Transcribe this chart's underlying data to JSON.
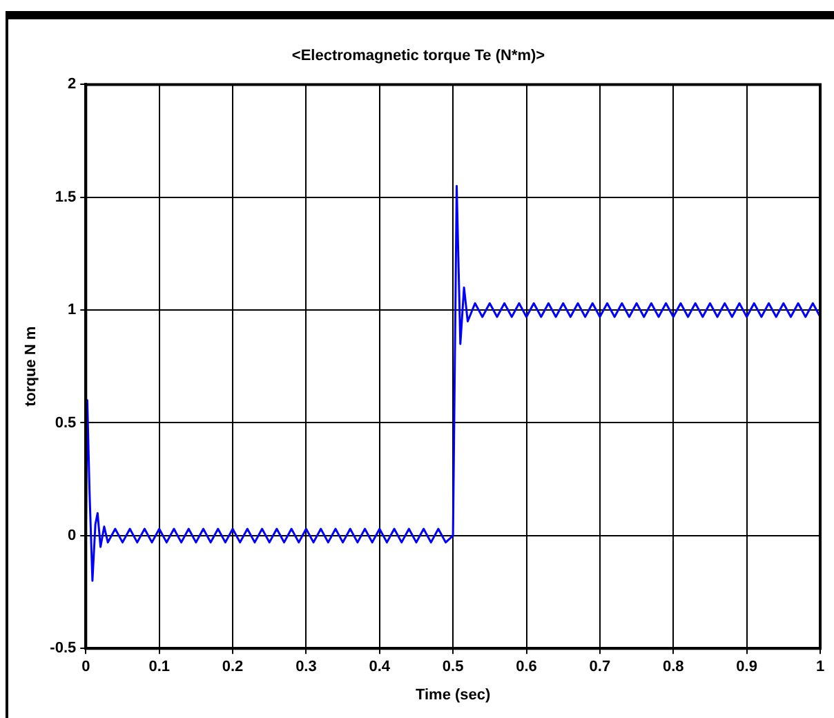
{
  "chart_data": {
    "type": "line",
    "title": "<Electromagnetic torque Te (N*m)>",
    "xlabel": "Time (sec)",
    "ylabel": "torque N m",
    "x": [
      0,
      0.002,
      0.005,
      0.009,
      0.013,
      0.016,
      0.02,
      0.025,
      0.03,
      0.04,
      0.05,
      0.06,
      0.07,
      0.08,
      0.09,
      0.1,
      0.11,
      0.12,
      0.13,
      0.14,
      0.15,
      0.16,
      0.17,
      0.18,
      0.19,
      0.2,
      0.21,
      0.22,
      0.23,
      0.24,
      0.25,
      0.26,
      0.27,
      0.28,
      0.29,
      0.3,
      0.31,
      0.32,
      0.33,
      0.34,
      0.35,
      0.36,
      0.37,
      0.38,
      0.39,
      0.4,
      0.41,
      0.42,
      0.43,
      0.44,
      0.45,
      0.46,
      0.47,
      0.48,
      0.49,
      0.5,
      0.505,
      0.51,
      0.515,
      0.52,
      0.53,
      0.54,
      0.55,
      0.56,
      0.57,
      0.58,
      0.59,
      0.6,
      0.61,
      0.62,
      0.63,
      0.64,
      0.65,
      0.66,
      0.67,
      0.68,
      0.69,
      0.7,
      0.71,
      0.72,
      0.73,
      0.74,
      0.75,
      0.76,
      0.77,
      0.78,
      0.79,
      0.8,
      0.81,
      0.82,
      0.83,
      0.84,
      0.85,
      0.86,
      0.87,
      0.88,
      0.89,
      0.9,
      0.91,
      0.92,
      0.93,
      0.94,
      0.95,
      0.96,
      0.97,
      0.98,
      0.99,
      1
    ],
    "series": [
      {
        "color": "#0000ff",
        "values": [
          0,
          0.6,
          0.2,
          -0.2,
          0.05,
          0.1,
          -0.05,
          0.04,
          -0.03,
          0.03,
          -0.03,
          0.03,
          -0.03,
          0.03,
          -0.03,
          0.03,
          -0.03,
          0.03,
          -0.03,
          0.03,
          -0.03,
          0.03,
          -0.03,
          0.03,
          -0.03,
          0.03,
          -0.03,
          0.03,
          -0.03,
          0.03,
          -0.03,
          0.03,
          -0.03,
          0.03,
          -0.03,
          0.03,
          -0.03,
          0.03,
          -0.03,
          0.03,
          -0.03,
          0.03,
          -0.03,
          0.03,
          -0.03,
          0.03,
          -0.03,
          0.03,
          -0.03,
          0.03,
          -0.03,
          0.03,
          -0.03,
          0.03,
          -0.03,
          0,
          1.55,
          0.85,
          1.1,
          0.95,
          1.03,
          0.97,
          1.03,
          0.97,
          1.03,
          0.97,
          1.03,
          0.97,
          1.03,
          0.97,
          1.03,
          0.97,
          1.03,
          0.97,
          1.03,
          0.97,
          1.03,
          0.97,
          1.03,
          0.97,
          1.03,
          0.97,
          1.03,
          0.97,
          1.03,
          0.97,
          1.03,
          0.97,
          1.03,
          0.97,
          1.03,
          0.97,
          1.03,
          0.97,
          1.03,
          0.97,
          1.03,
          0.97,
          1.03,
          0.97,
          1.03,
          0.97,
          1.03,
          0.97,
          1.03,
          0.97,
          1.03,
          0.97
        ]
      }
    ],
    "xlim": [
      0,
      1
    ],
    "xticks": [
      0,
      0.1,
      0.2,
      0.3,
      0.4,
      0.5,
      0.6,
      0.7,
      0.8,
      0.9,
      1
    ],
    "ylim": [
      -0.5,
      2
    ],
    "yticks": [
      -0.5,
      0,
      0.5,
      1,
      1.5,
      2
    ],
    "grid": true,
    "line_style": "solid",
    "marker": "none"
  }
}
